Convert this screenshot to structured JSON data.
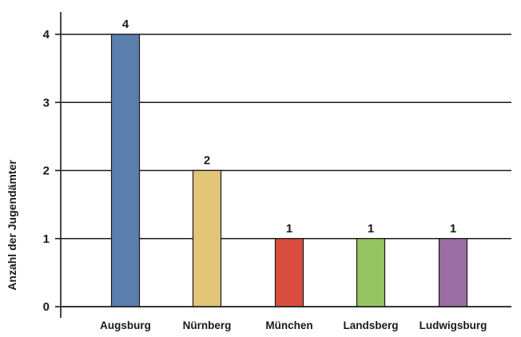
{
  "chart_data": {
    "type": "bar",
    "categories": [
      "Augsburg",
      "Nürnberg",
      "München",
      "Landsberg",
      "Ludwigsburg"
    ],
    "values": [
      4,
      2,
      1,
      1,
      1
    ],
    "data_labels": [
      "4",
      "2",
      "1",
      "1",
      "1"
    ],
    "colors": [
      "#5b7fae",
      "#e3c577",
      "#d94d3e",
      "#97c462",
      "#9b6ea3"
    ],
    "title": "",
    "xlabel": "",
    "ylabel": "Anzahl der Jugendämter",
    "ylim": [
      0,
      4
    ],
    "yticks": [
      0,
      1,
      2,
      3,
      4
    ],
    "ytick_labels": [
      "0",
      "1",
      "2",
      "3",
      "4"
    ],
    "grid": true,
    "legend": "none"
  }
}
